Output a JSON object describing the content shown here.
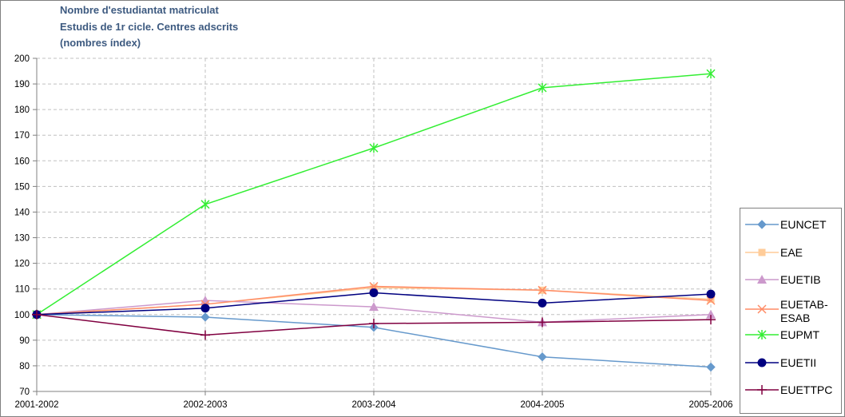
{
  "chart_data": {
    "type": "line",
    "title_lines": [
      "Nombre d'estudiantat matriculat",
      "Estudis de 1r cicle. Centres adscrits",
      "(nombres índex)"
    ],
    "categories": [
      "2001-2002",
      "2002-2003",
      "2003-2004",
      "2004-2005",
      "2005-2006"
    ],
    "ylim": [
      70,
      200
    ],
    "yticks": [
      70,
      80,
      90,
      100,
      110,
      120,
      130,
      140,
      150,
      160,
      170,
      180,
      190,
      200
    ],
    "grid": true,
    "legend_position": "right",
    "series": [
      {
        "name": "EUNCET",
        "values": [
          100,
          99,
          95,
          83.5,
          79.5
        ],
        "color": "#6699cc",
        "marker": "diamond"
      },
      {
        "name": "EAE",
        "values": [
          100,
          104,
          110.5,
          109.5,
          106
        ],
        "color": "#ffcc99",
        "marker": "square"
      },
      {
        "name": "EUETIB",
        "values": [
          100,
          105.5,
          103,
          97,
          100
        ],
        "color": "#cc99cc",
        "marker": "triangle"
      },
      {
        "name": "EUETAB-ESAB",
        "values": [
          100,
          104,
          111,
          109.5,
          105.5
        ],
        "color": "#ff8c66",
        "marker": "x"
      },
      {
        "name": "EUPMT",
        "values": [
          100,
          143,
          165,
          188.5,
          194
        ],
        "color": "#33ee33",
        "marker": "star"
      },
      {
        "name": "EUETII",
        "values": [
          100,
          102.5,
          108.5,
          104.5,
          108
        ],
        "color": "#000080",
        "marker": "circle"
      },
      {
        "name": "EUETTPC",
        "values": [
          100,
          92,
          96.5,
          97,
          98
        ],
        "color": "#800040",
        "marker": "plus"
      }
    ]
  }
}
